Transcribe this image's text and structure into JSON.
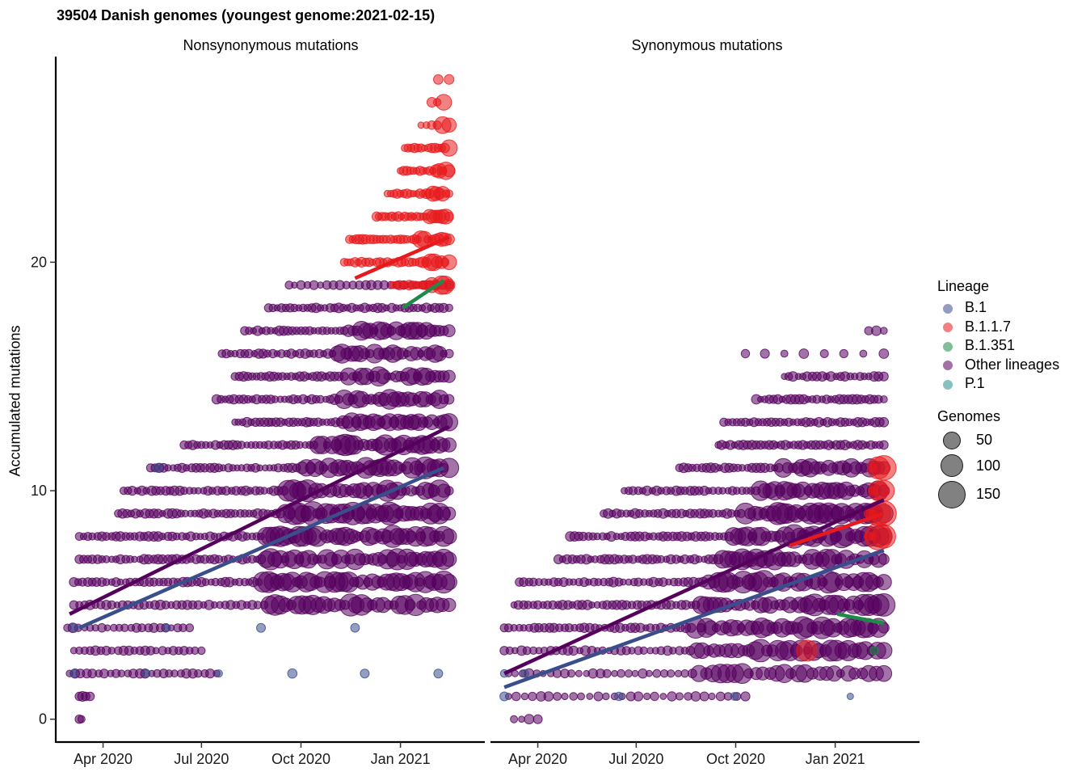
{
  "title": "39504 Danish genomes (youngest genome:2021-02-15)",
  "ylabel": "Accumulated mutations",
  "panels": [
    "Nonsynonymous mutations",
    "Synonymous mutations"
  ],
  "legend": {
    "lineage_title": "Lineage",
    "lineages": [
      {
        "name": "B.1",
        "color": "#3B4E8C"
      },
      {
        "name": "B.1.1.7",
        "color": "#E8191C"
      },
      {
        "name": "B.1.351",
        "color": "#1E8A4A"
      },
      {
        "name": "Other lineages",
        "color": "#56005E"
      },
      {
        "name": "P.1",
        "color": "#2A8E8E"
      }
    ],
    "size_title": "Genomes",
    "sizes": [
      "50",
      "100",
      "150"
    ]
  },
  "chart_data": {
    "type": "scatter",
    "title": "39504 Danish genomes (youngest genome:2021-02-15)",
    "ylabel": "Accumulated mutations",
    "x_ticks": [
      "Apr 2020",
      "Jul 2020",
      "Oct 2020",
      "Jan 2021"
    ],
    "y_ticks": [
      "0",
      "10",
      "20"
    ],
    "ylim": [
      -1,
      29
    ],
    "xlim": [
      "2020-02-18",
      "2021-03-20"
    ],
    "panels": [
      {
        "name": "Nonsynonymous mutations",
        "point_bands": [
          {
            "lineage": "Other lineages",
            "y": 0,
            "x_from": "2020-03-10",
            "x_to": "2020-03-12",
            "n": 2
          },
          {
            "lineage": "Other lineages",
            "y": 1,
            "x_from": "2020-03-10",
            "x_to": "2020-03-20",
            "n": 4
          },
          {
            "lineage": "Other lineages",
            "y": 2,
            "x_from": "2020-03-01",
            "x_to": "2020-07-15",
            "n": 26
          },
          {
            "lineage": "Other lineages",
            "y": 3,
            "x_from": "2020-03-05",
            "x_to": "2020-07-01",
            "n": 24
          },
          {
            "lineage": "Other lineages",
            "y": 4,
            "x_from": "2020-02-28",
            "x_to": "2020-06-20",
            "n": 22
          },
          {
            "lineage": "Other lineages",
            "y": 5,
            "x_from": "2020-03-05",
            "x_to": "2021-02-15",
            "n": 70
          },
          {
            "lineage": "Other lineages",
            "y": 6,
            "x_from": "2020-03-05",
            "x_to": "2021-02-15",
            "n": 80
          },
          {
            "lineage": "Other lineages",
            "y": 7,
            "x_from": "2020-03-10",
            "x_to": "2021-02-15",
            "n": 80
          },
          {
            "lineage": "Other lineages",
            "y": 8,
            "x_from": "2020-03-10",
            "x_to": "2021-02-15",
            "n": 80
          },
          {
            "lineage": "Other lineages",
            "y": 9,
            "x_from": "2020-04-15",
            "x_to": "2021-02-15",
            "n": 74
          },
          {
            "lineage": "Other lineages",
            "y": 10,
            "x_from": "2020-04-20",
            "x_to": "2021-02-15",
            "n": 70
          },
          {
            "lineage": "Other lineages",
            "y": 11,
            "x_from": "2020-05-15",
            "x_to": "2021-02-15",
            "n": 66
          },
          {
            "lineage": "Other lineages",
            "y": 12,
            "x_from": "2020-06-15",
            "x_to": "2021-02-15",
            "n": 60
          },
          {
            "lineage": "Other lineages",
            "y": 13,
            "x_from": "2020-08-01",
            "x_to": "2021-02-15",
            "n": 52
          },
          {
            "lineage": "Other lineages",
            "y": 14,
            "x_from": "2020-07-15",
            "x_to": "2021-02-15",
            "n": 52
          },
          {
            "lineage": "Other lineages",
            "y": 15,
            "x_from": "2020-08-01",
            "x_to": "2021-02-15",
            "n": 50
          },
          {
            "lineage": "Other lineages",
            "y": 16,
            "x_from": "2020-07-20",
            "x_to": "2021-02-15",
            "n": 50
          },
          {
            "lineage": "Other lineages",
            "y": 17,
            "x_from": "2020-08-10",
            "x_to": "2021-02-15",
            "n": 48
          },
          {
            "lineage": "Other lineages",
            "y": 18,
            "x_from": "2020-09-01",
            "x_to": "2021-02-15",
            "n": 42
          },
          {
            "lineage": "Other lineages",
            "y": 19,
            "x_from": "2020-09-20",
            "x_to": "2021-02-15",
            "n": 26
          },
          {
            "lineage": "B.1",
            "y": 2,
            "x_from": "2020-03-05",
            "x_to": "2021-02-05",
            "n": 6
          },
          {
            "lineage": "B.1",
            "y": 4,
            "x_from": "2020-03-05",
            "x_to": "2020-11-20",
            "n": 4
          },
          {
            "lineage": "B.1",
            "y": 11,
            "x_from": "2020-05-20",
            "x_to": "2020-05-25",
            "n": 1
          },
          {
            "lineage": "B.1.1.7",
            "y": 20,
            "x_from": "2020-11-10",
            "x_to": "2021-02-15",
            "n": 30
          },
          {
            "lineage": "B.1.1.7",
            "y": 21,
            "x_from": "2020-11-15",
            "x_to": "2021-02-15",
            "n": 30
          },
          {
            "lineage": "B.1.1.7",
            "y": 22,
            "x_from": "2020-12-10",
            "x_to": "2021-02-15",
            "n": 24
          },
          {
            "lineage": "B.1.1.7",
            "y": 23,
            "x_from": "2020-12-20",
            "x_to": "2021-02-15",
            "n": 20
          },
          {
            "lineage": "B.1.1.7",
            "y": 24,
            "x_from": "2021-01-01",
            "x_to": "2021-02-15",
            "n": 16
          },
          {
            "lineage": "B.1.1.7",
            "y": 25,
            "x_from": "2021-01-05",
            "x_to": "2021-02-15",
            "n": 14
          },
          {
            "lineage": "B.1.1.7",
            "y": 26,
            "x_from": "2021-01-20",
            "x_to": "2021-02-15",
            "n": 6
          },
          {
            "lineage": "B.1.1.7",
            "y": 27,
            "x_from": "2021-01-30",
            "x_to": "2021-02-10",
            "n": 3
          },
          {
            "lineage": "B.1.1.7",
            "y": 28,
            "x_from": "2021-02-05",
            "x_to": "2021-02-15",
            "n": 2
          },
          {
            "lineage": "B.1.1.7",
            "y": 19,
            "x_from": "2020-12-25",
            "x_to": "2021-02-15",
            "n": 18
          }
        ],
        "trend_lines": [
          {
            "lineage": "Other lineages",
            "x": [
              "2020-03-01",
              "2021-02-15"
            ],
            "y": [
              4.6,
              12.8
            ]
          },
          {
            "lineage": "B.1",
            "x": [
              "2020-03-10",
              "2021-02-10"
            ],
            "y": [
              4.0,
              11.0
            ]
          },
          {
            "lineage": "B.1.1.7",
            "x": [
              "2020-11-20",
              "2021-02-15"
            ],
            "y": [
              19.3,
              21.1
            ]
          },
          {
            "lineage": "B.1.351",
            "x": [
              "2021-01-03",
              "2021-02-10"
            ],
            "y": [
              18.0,
              19.2
            ]
          }
        ]
      },
      {
        "name": "Synonymous mutations",
        "point_bands": [
          {
            "lineage": "Other lineages",
            "y": 0,
            "x_from": "2020-03-10",
            "x_to": "2020-04-01",
            "n": 4
          },
          {
            "lineage": "Other lineages",
            "y": 1,
            "x_from": "2020-03-05",
            "x_to": "2020-10-10",
            "n": 30
          },
          {
            "lineage": "Other lineages",
            "y": 2,
            "x_from": "2020-03-05",
            "x_to": "2021-02-15",
            "n": 54
          },
          {
            "lineage": "Other lineages",
            "y": 3,
            "x_from": "2020-03-01",
            "x_to": "2021-02-15",
            "n": 66
          },
          {
            "lineage": "Other lineages",
            "y": 4,
            "x_from": "2020-03-01",
            "x_to": "2021-02-15",
            "n": 76
          },
          {
            "lineage": "Other lineages",
            "y": 5,
            "x_from": "2020-03-10",
            "x_to": "2021-02-15",
            "n": 76
          },
          {
            "lineage": "Other lineages",
            "y": 6,
            "x_from": "2020-03-15",
            "x_to": "2021-02-15",
            "n": 74
          },
          {
            "lineage": "Other lineages",
            "y": 7,
            "x_from": "2020-04-20",
            "x_to": "2021-02-15",
            "n": 70
          },
          {
            "lineage": "Other lineages",
            "y": 8,
            "x_from": "2020-05-01",
            "x_to": "2021-02-15",
            "n": 68
          },
          {
            "lineage": "Other lineages",
            "y": 9,
            "x_from": "2020-06-01",
            "x_to": "2021-02-15",
            "n": 62
          },
          {
            "lineage": "Other lineages",
            "y": 10,
            "x_from": "2020-06-20",
            "x_to": "2021-02-15",
            "n": 56
          },
          {
            "lineage": "Other lineages",
            "y": 11,
            "x_from": "2020-08-10",
            "x_to": "2021-02-15",
            "n": 46
          },
          {
            "lineage": "Other lineages",
            "y": 12,
            "x_from": "2020-09-15",
            "x_to": "2021-02-15",
            "n": 40
          },
          {
            "lineage": "Other lineages",
            "y": 13,
            "x_from": "2020-09-20",
            "x_to": "2021-02-15",
            "n": 38
          },
          {
            "lineage": "Other lineages",
            "y": 14,
            "x_from": "2020-10-20",
            "x_to": "2021-02-15",
            "n": 30
          },
          {
            "lineage": "Other lineages",
            "y": 15,
            "x_from": "2020-11-15",
            "x_to": "2021-02-15",
            "n": 22
          },
          {
            "lineage": "Other lineages",
            "y": 16,
            "x_from": "2020-10-10",
            "x_to": "2021-02-15",
            "n": 8
          },
          {
            "lineage": "Other lineages",
            "y": 17,
            "x_from": "2021-02-01",
            "x_to": "2021-02-15",
            "n": 3
          },
          {
            "lineage": "B.1",
            "y": 1,
            "x_from": "2020-03-01",
            "x_to": "2021-01-15",
            "n": 4
          },
          {
            "lineage": "B.1",
            "y": 2,
            "x_from": "2020-03-01",
            "x_to": "2020-03-20",
            "n": 2
          },
          {
            "lineage": "B.1.1.7",
            "y": 8,
            "x_from": "2021-02-01",
            "x_to": "2021-02-15",
            "n": 4
          },
          {
            "lineage": "B.1.1.7",
            "y": 9,
            "x_from": "2021-02-01",
            "x_to": "2021-02-15",
            "n": 4
          },
          {
            "lineage": "B.1.1.7",
            "y": 10,
            "x_from": "2021-02-05",
            "x_to": "2021-02-15",
            "n": 3
          },
          {
            "lineage": "B.1.1.7",
            "y": 11,
            "x_from": "2021-02-05",
            "x_to": "2021-02-15",
            "n": 3
          },
          {
            "lineage": "B.1.1.7",
            "y": 3,
            "x_from": "2020-12-05",
            "x_to": "2020-12-07",
            "n": 1
          },
          {
            "lineage": "B.1.351",
            "y": 3,
            "x_from": "2021-02-05",
            "x_to": "2021-02-07",
            "n": 1
          }
        ],
        "trend_lines": [
          {
            "lineage": "Other lineages",
            "x": [
              "2020-03-01",
              "2021-02-15"
            ],
            "y": [
              2.0,
              9.6
            ]
          },
          {
            "lineage": "B.1",
            "x": [
              "2020-03-01",
              "2021-02-15"
            ],
            "y": [
              1.4,
              7.4
            ]
          },
          {
            "lineage": "B.1.1.7",
            "x": [
              "2020-11-20",
              "2021-02-15"
            ],
            "y": [
              7.6,
              9.0
            ]
          },
          {
            "lineage": "B.1.351",
            "x": [
              "2021-01-03",
              "2021-02-15"
            ],
            "y": [
              4.6,
              4.2
            ]
          }
        ]
      }
    ]
  }
}
